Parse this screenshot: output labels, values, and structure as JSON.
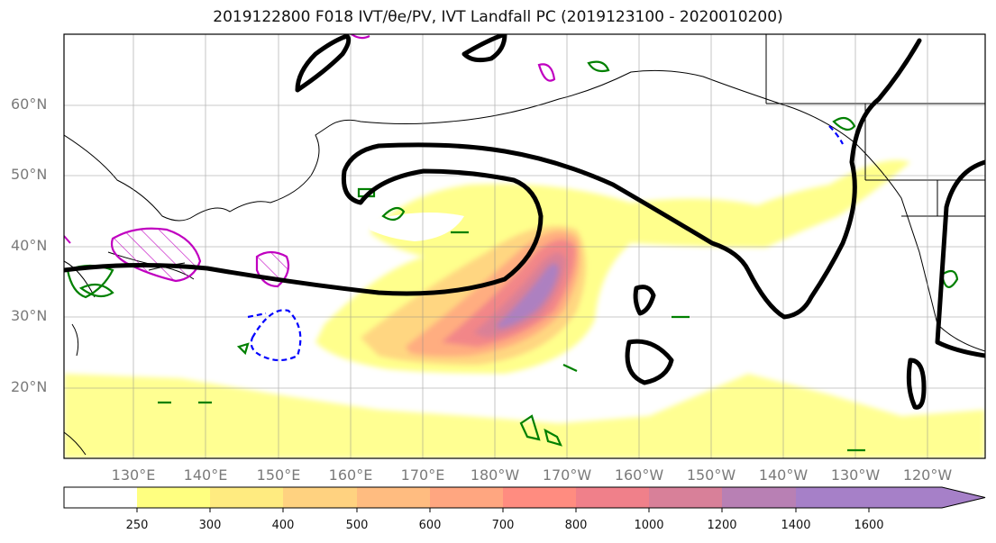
{
  "title": "2019122800 F018 IVT/θe/PV, IVT Landfall PC (2019123100 - 2020010200)",
  "map": {
    "lat_labels": [
      "60°N",
      "50°N",
      "40°N",
      "30°N",
      "20°N"
    ],
    "lon_labels": [
      "130°E",
      "140°E",
      "150°E",
      "160°E",
      "170°E",
      "180°W",
      "170°W",
      "160°W",
      "150°W",
      "140°W",
      "130°W",
      "120°W"
    ]
  },
  "colorbar": {
    "ticks": [
      "250",
      "300",
      "400",
      "500",
      "600",
      "700",
      "800",
      "1000",
      "1200",
      "1400",
      "1600"
    ],
    "colors": [
      "#ffffff",
      "#ffff80",
      "#ffeb80",
      "#ffd280",
      "#ffbc80",
      "#ffa680",
      "#ff8c80",
      "#f0808a",
      "#d88099",
      "#b880b4",
      "#a680c8"
    ]
  },
  "colors": {
    "ivt_contour": "#000000",
    "theta_e": "#008000",
    "pv_positive": "#c000c0",
    "pv_negative": "#0000ff"
  }
}
